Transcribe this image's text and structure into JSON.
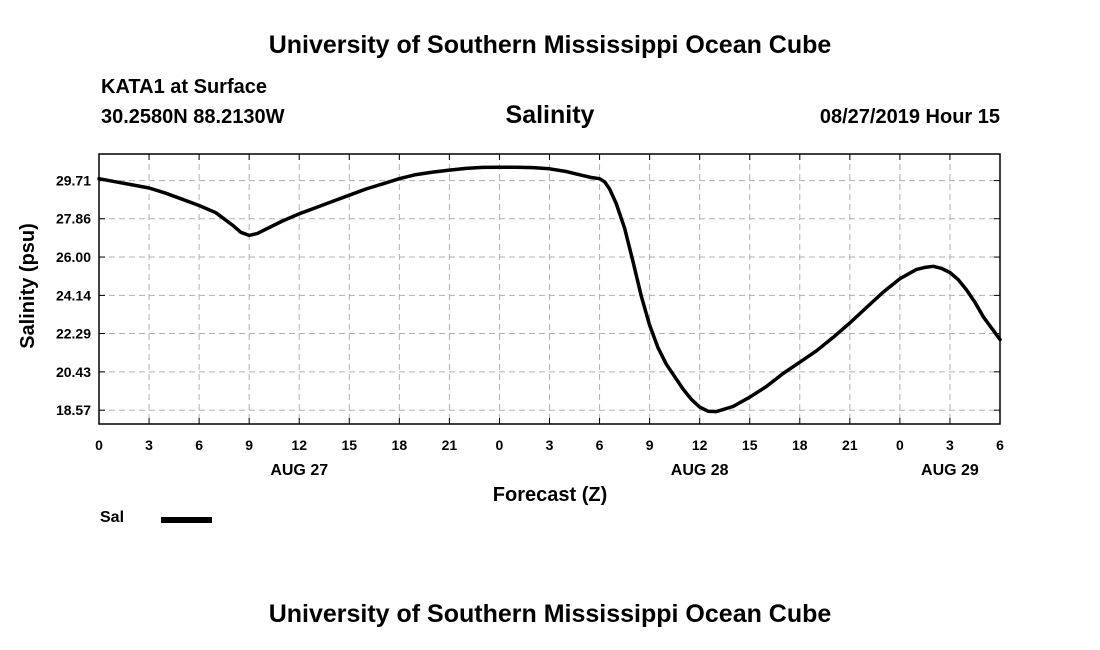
{
  "header": {
    "top_title": "University of Southern Mississippi Ocean Cube",
    "station": "KATA1 at Surface",
    "coords": "30.2580N 88.2130W",
    "chart_title": "Salinity",
    "datetime": "08/27/2019 Hour 15"
  },
  "footer": {
    "bottom_title": "University of Southern Mississippi Ocean Cube"
  },
  "colors": {
    "line": "#000000",
    "grid": "#b0b0b0"
  },
  "chart_data": {
    "type": "line",
    "title": "Salinity",
    "xlabel": "Forecast (Z)",
    "ylabel": "Salinity (psu)",
    "xlim_hours": [
      0,
      54
    ],
    "ylim": [
      17.9,
      31.0
    ],
    "y_ticks": [
      "18.57",
      "20.43",
      "22.29",
      "24.14",
      "26.00",
      "27.86",
      "29.71"
    ],
    "x_ticks": [
      {
        "h": 0,
        "label": "0"
      },
      {
        "h": 3,
        "label": "3"
      },
      {
        "h": 6,
        "label": "6"
      },
      {
        "h": 9,
        "label": "9"
      },
      {
        "h": 12,
        "label": "12"
      },
      {
        "h": 15,
        "label": "15"
      },
      {
        "h": 18,
        "label": "18"
      },
      {
        "h": 21,
        "label": "21"
      },
      {
        "h": 24,
        "label": "0"
      },
      {
        "h": 27,
        "label": "3"
      },
      {
        "h": 30,
        "label": "6"
      },
      {
        "h": 33,
        "label": "9"
      },
      {
        "h": 36,
        "label": "12"
      },
      {
        "h": 39,
        "label": "15"
      },
      {
        "h": 42,
        "label": "18"
      },
      {
        "h": 45,
        "label": "21"
      },
      {
        "h": 48,
        "label": "0"
      },
      {
        "h": 51,
        "label": "3"
      },
      {
        "h": 54,
        "label": "6"
      }
    ],
    "date_labels": [
      {
        "h": 12,
        "label": "AUG 27"
      },
      {
        "h": 36,
        "label": "AUG 28"
      },
      {
        "h": 51,
        "label": "AUG 29"
      }
    ],
    "grid": true,
    "legend_position": "bottom-left",
    "series": [
      {
        "name": "Sal",
        "x_hours": [
          0,
          1,
          2,
          3,
          4,
          5,
          6,
          7,
          8,
          8.5,
          9,
          9.5,
          10,
          11,
          12,
          13,
          14,
          15,
          16,
          17,
          18,
          19,
          20,
          21,
          22,
          23,
          24,
          25,
          26,
          27,
          28,
          28.5,
          29,
          29.5,
          30,
          30.3,
          30.6,
          31,
          31.5,
          32,
          32.5,
          33,
          33.5,
          34,
          35,
          35.5,
          36,
          36.5,
          37,
          38,
          39,
          40,
          41,
          42,
          43,
          44,
          45,
          46,
          47,
          48,
          49,
          49.5,
          50,
          50.5,
          51,
          51.5,
          52,
          52.5,
          53,
          54
        ],
        "values": [
          29.8,
          29.65,
          29.5,
          29.35,
          29.1,
          28.8,
          28.5,
          28.15,
          27.55,
          27.2,
          27.05,
          27.15,
          27.35,
          27.75,
          28.1,
          28.4,
          28.7,
          29.0,
          29.3,
          29.55,
          29.8,
          30.0,
          30.12,
          30.22,
          30.3,
          30.35,
          30.36,
          30.36,
          30.34,
          30.28,
          30.15,
          30.05,
          29.95,
          29.86,
          29.8,
          29.65,
          29.3,
          28.6,
          27.4,
          25.8,
          24.1,
          22.7,
          21.6,
          20.8,
          19.6,
          19.1,
          18.72,
          18.52,
          18.5,
          18.75,
          19.2,
          19.72,
          20.35,
          20.9,
          21.45,
          22.1,
          22.8,
          23.55,
          24.3,
          24.95,
          25.4,
          25.5,
          25.55,
          25.45,
          25.25,
          24.9,
          24.4,
          23.8,
          23.1,
          22.0
        ]
      }
    ]
  },
  "legend": {
    "label": "Sal"
  }
}
